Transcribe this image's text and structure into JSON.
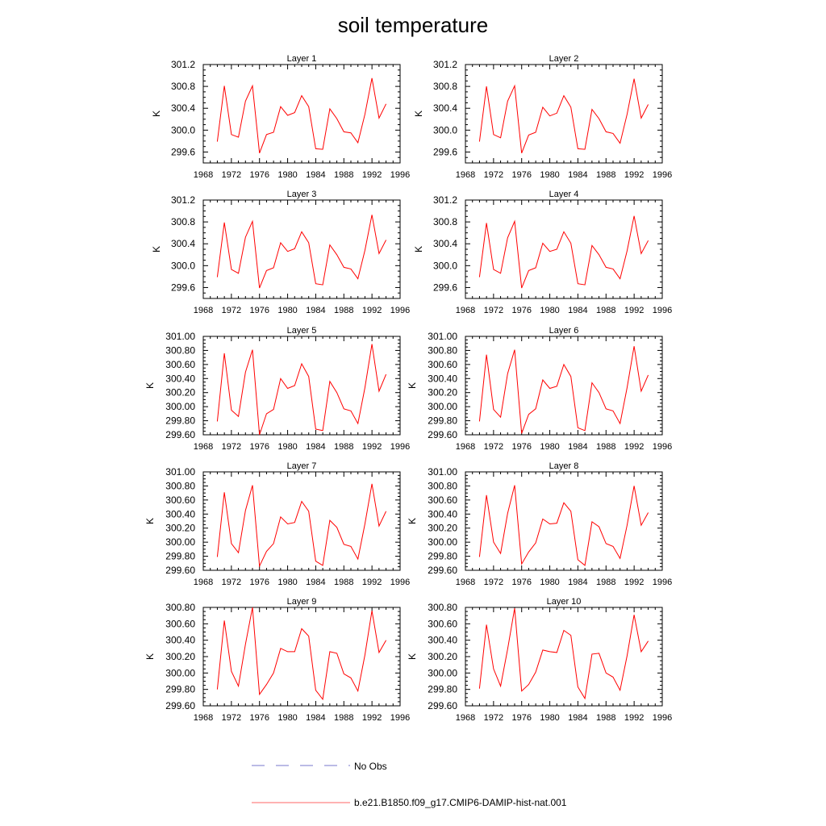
{
  "title": "soil temperature",
  "legend": [
    {
      "label": "No Obs",
      "color": "#7777cc",
      "style": "dashed"
    },
    {
      "label": "b.e21.B1850.f09_g17.CMIP6-DAMIP-hist-nat.001",
      "color": "#ff6666",
      "style": "solid"
    }
  ],
  "series_color": "#ff0000",
  "chart_data": [
    {
      "type": "line",
      "title": "Layer 1",
      "ylabel": "K",
      "xlim": [
        1968,
        1996
      ],
      "x_ticks": [
        1968,
        1972,
        1976,
        1980,
        1984,
        1988,
        1992,
        1996
      ],
      "ylim": [
        299.4,
        301.2
      ],
      "y_ticks": [
        299.6,
        300.0,
        300.4,
        300.8,
        301.2
      ],
      "y_decimals": 1,
      "x": [
        1970,
        1971,
        1972,
        1973,
        1974,
        1975,
        1976,
        1977,
        1978,
        1979,
        1980,
        1981,
        1982,
        1983,
        1984,
        1985,
        1986,
        1987,
        1988,
        1989,
        1990,
        1991,
        1992,
        1993,
        1994
      ],
      "values": [
        299.79,
        300.81,
        299.92,
        299.87,
        300.53,
        300.81,
        299.58,
        299.92,
        299.96,
        300.43,
        300.27,
        300.32,
        300.63,
        300.43,
        299.66,
        299.65,
        300.39,
        300.21,
        299.97,
        299.95,
        299.77,
        300.29,
        300.95,
        300.22,
        300.48
      ]
    },
    {
      "type": "line",
      "title": "Layer 2",
      "ylabel": "K",
      "xlim": [
        1968,
        1996
      ],
      "x_ticks": [
        1968,
        1972,
        1976,
        1980,
        1984,
        1988,
        1992,
        1996
      ],
      "ylim": [
        299.4,
        301.2
      ],
      "y_ticks": [
        299.6,
        300.0,
        300.4,
        300.8,
        301.2
      ],
      "y_decimals": 1,
      "x": [
        1970,
        1971,
        1972,
        1973,
        1974,
        1975,
        1976,
        1977,
        1978,
        1979,
        1980,
        1981,
        1982,
        1983,
        1984,
        1985,
        1986,
        1987,
        1988,
        1989,
        1990,
        1991,
        1992,
        1993,
        1994
      ],
      "values": [
        299.79,
        300.8,
        299.92,
        299.86,
        300.53,
        300.81,
        299.58,
        299.91,
        299.96,
        300.42,
        300.26,
        300.31,
        300.63,
        300.42,
        299.66,
        299.65,
        300.38,
        300.21,
        299.97,
        299.94,
        299.76,
        300.29,
        300.94,
        300.22,
        300.47
      ]
    },
    {
      "type": "line",
      "title": "Layer 3",
      "ylabel": "K",
      "xlim": [
        1968,
        1996
      ],
      "x_ticks": [
        1968,
        1972,
        1976,
        1980,
        1984,
        1988,
        1992,
        1996
      ],
      "ylim": [
        299.4,
        301.2
      ],
      "y_ticks": [
        299.6,
        300.0,
        300.4,
        300.8,
        301.2
      ],
      "y_decimals": 1,
      "x": [
        1970,
        1971,
        1972,
        1973,
        1974,
        1975,
        1976,
        1977,
        1978,
        1979,
        1980,
        1981,
        1982,
        1983,
        1984,
        1985,
        1986,
        1987,
        1988,
        1989,
        1990,
        1991,
        1992,
        1993,
        1994
      ],
      "values": [
        299.79,
        300.79,
        299.93,
        299.86,
        300.52,
        300.81,
        299.59,
        299.91,
        299.96,
        300.42,
        300.26,
        300.31,
        300.62,
        300.42,
        299.67,
        299.65,
        300.38,
        300.2,
        299.97,
        299.94,
        299.76,
        300.28,
        300.93,
        300.22,
        300.47
      ]
    },
    {
      "type": "line",
      "title": "Layer 4",
      "ylabel": "K",
      "xlim": [
        1968,
        1996
      ],
      "x_ticks": [
        1968,
        1972,
        1976,
        1980,
        1984,
        1988,
        1992,
        1996
      ],
      "ylim": [
        299.4,
        301.2
      ],
      "y_ticks": [
        299.6,
        300.0,
        300.4,
        300.8,
        301.2
      ],
      "y_decimals": 1,
      "x": [
        1970,
        1971,
        1972,
        1973,
        1974,
        1975,
        1976,
        1977,
        1978,
        1979,
        1980,
        1981,
        1982,
        1983,
        1984,
        1985,
        1986,
        1987,
        1988,
        1989,
        1990,
        1991,
        1992,
        1993,
        1994
      ],
      "values": [
        299.79,
        300.78,
        299.93,
        299.86,
        300.51,
        300.81,
        299.59,
        299.91,
        299.96,
        300.41,
        300.26,
        300.3,
        300.62,
        300.41,
        299.67,
        299.65,
        300.37,
        300.2,
        299.97,
        299.94,
        299.76,
        300.27,
        300.91,
        300.22,
        300.46
      ]
    },
    {
      "type": "line",
      "title": "Layer 5",
      "ylabel": "K",
      "xlim": [
        1968,
        1996
      ],
      "x_ticks": [
        1968,
        1972,
        1976,
        1980,
        1984,
        1988,
        1992,
        1996
      ],
      "ylim": [
        299.6,
        301.0
      ],
      "y_ticks": [
        299.6,
        299.8,
        300.0,
        300.2,
        300.4,
        300.6,
        300.8,
        301.0
      ],
      "y_decimals": 2,
      "x": [
        1970,
        1971,
        1972,
        1973,
        1974,
        1975,
        1976,
        1977,
        1978,
        1979,
        1980,
        1981,
        1982,
        1983,
        1984,
        1985,
        1986,
        1987,
        1988,
        1989,
        1990,
        1991,
        1992,
        1993,
        1994
      ],
      "values": [
        299.79,
        300.76,
        299.95,
        299.86,
        300.49,
        300.81,
        299.6,
        299.9,
        299.96,
        300.4,
        300.26,
        300.3,
        300.61,
        300.43,
        299.68,
        299.66,
        300.36,
        300.2,
        299.97,
        299.94,
        299.76,
        300.27,
        300.89,
        300.22,
        300.46
      ]
    },
    {
      "type": "line",
      "title": "Layer 6",
      "ylabel": "K",
      "xlim": [
        1968,
        1996
      ],
      "x_ticks": [
        1968,
        1972,
        1976,
        1980,
        1984,
        1988,
        1992,
        1996
      ],
      "ylim": [
        299.6,
        301.0
      ],
      "y_ticks": [
        299.6,
        299.8,
        300.0,
        300.2,
        300.4,
        300.6,
        300.8,
        301.0
      ],
      "y_decimals": 2,
      "x": [
        1970,
        1971,
        1972,
        1973,
        1974,
        1975,
        1976,
        1977,
        1978,
        1979,
        1980,
        1981,
        1982,
        1983,
        1984,
        1985,
        1986,
        1987,
        1988,
        1989,
        1990,
        1991,
        1992,
        1993,
        1994
      ],
      "values": [
        299.79,
        300.74,
        299.96,
        299.85,
        300.47,
        300.81,
        299.62,
        299.89,
        299.97,
        300.38,
        300.26,
        300.29,
        300.6,
        300.43,
        299.7,
        299.66,
        300.34,
        300.2,
        299.97,
        299.94,
        299.76,
        300.27,
        300.86,
        300.22,
        300.45
      ]
    },
    {
      "type": "line",
      "title": "Layer 7",
      "ylabel": "K",
      "xlim": [
        1968,
        1996
      ],
      "x_ticks": [
        1968,
        1972,
        1976,
        1980,
        1984,
        1988,
        1992,
        1996
      ],
      "ylim": [
        299.6,
        301.0
      ],
      "y_ticks": [
        299.6,
        299.8,
        300.0,
        300.2,
        300.4,
        300.6,
        300.8,
        301.0
      ],
      "y_decimals": 2,
      "x": [
        1970,
        1971,
        1972,
        1973,
        1974,
        1975,
        1976,
        1977,
        1978,
        1979,
        1980,
        1981,
        1982,
        1983,
        1984,
        1985,
        1986,
        1987,
        1988,
        1989,
        1990,
        1991,
        1992,
        1993,
        1994
      ],
      "values": [
        299.79,
        300.71,
        299.98,
        299.85,
        300.45,
        300.81,
        299.66,
        299.87,
        299.98,
        300.36,
        300.26,
        300.28,
        300.58,
        300.44,
        299.73,
        299.67,
        300.31,
        300.21,
        299.97,
        299.94,
        299.76,
        300.26,
        300.83,
        300.23,
        300.44
      ]
    },
    {
      "type": "line",
      "title": "Layer 8",
      "ylabel": "K",
      "xlim": [
        1968,
        1996
      ],
      "x_ticks": [
        1968,
        1972,
        1976,
        1980,
        1984,
        1988,
        1992,
        1996
      ],
      "ylim": [
        299.6,
        301.0
      ],
      "y_ticks": [
        299.6,
        299.8,
        300.0,
        300.2,
        300.4,
        300.6,
        300.8,
        301.0
      ],
      "y_decimals": 2,
      "x": [
        1970,
        1971,
        1972,
        1973,
        1974,
        1975,
        1976,
        1977,
        1978,
        1979,
        1980,
        1981,
        1982,
        1983,
        1984,
        1985,
        1986,
        1987,
        1988,
        1989,
        1990,
        1991,
        1992,
        1993,
        1994
      ],
      "values": [
        299.79,
        300.67,
        300.0,
        299.84,
        300.41,
        300.81,
        299.69,
        299.86,
        299.99,
        300.33,
        300.26,
        300.27,
        300.56,
        300.44,
        299.75,
        299.67,
        300.29,
        300.22,
        299.98,
        299.94,
        299.77,
        300.24,
        300.8,
        300.24,
        300.42
      ]
    },
    {
      "type": "line",
      "title": "Layer 9",
      "ylabel": "K",
      "xlim": [
        1968,
        1996
      ],
      "x_ticks": [
        1968,
        1972,
        1976,
        1980,
        1984,
        1988,
        1992,
        1996
      ],
      "ylim": [
        299.6,
        300.8
      ],
      "y_ticks": [
        299.6,
        299.8,
        300.0,
        300.2,
        300.4,
        300.6,
        300.8
      ],
      "y_decimals": 2,
      "x": [
        1970,
        1971,
        1972,
        1973,
        1974,
        1975,
        1976,
        1977,
        1978,
        1979,
        1980,
        1981,
        1982,
        1983,
        1984,
        1985,
        1986,
        1987,
        1988,
        1989,
        1990,
        1991,
        1992,
        1993,
        1994
      ],
      "values": [
        299.8,
        300.64,
        300.02,
        299.84,
        300.35,
        300.8,
        299.74,
        299.86,
        300.0,
        300.3,
        300.26,
        300.26,
        300.54,
        300.45,
        299.79,
        299.68,
        300.26,
        300.24,
        299.99,
        299.94,
        299.78,
        300.22,
        300.76,
        300.25,
        300.4
      ]
    },
    {
      "type": "line",
      "title": "Layer 10",
      "ylabel": "K",
      "xlim": [
        1968,
        1996
      ],
      "x_ticks": [
        1968,
        1972,
        1976,
        1980,
        1984,
        1988,
        1992,
        1996
      ],
      "ylim": [
        299.6,
        300.8
      ],
      "y_ticks": [
        299.6,
        299.8,
        300.0,
        300.2,
        300.4,
        300.6,
        300.8
      ],
      "y_decimals": 2,
      "x": [
        1970,
        1971,
        1972,
        1973,
        1974,
        1975,
        1976,
        1977,
        1978,
        1979,
        1980,
        1981,
        1982,
        1983,
        1984,
        1985,
        1986,
        1987,
        1988,
        1989,
        1990,
        1991,
        1992,
        1993,
        1994
      ],
      "values": [
        299.81,
        300.59,
        300.05,
        299.84,
        300.29,
        300.79,
        299.78,
        299.86,
        300.01,
        300.28,
        300.26,
        300.25,
        300.52,
        300.46,
        299.83,
        299.69,
        300.23,
        300.24,
        300.0,
        299.95,
        299.79,
        300.21,
        300.71,
        300.26,
        300.39
      ]
    }
  ]
}
